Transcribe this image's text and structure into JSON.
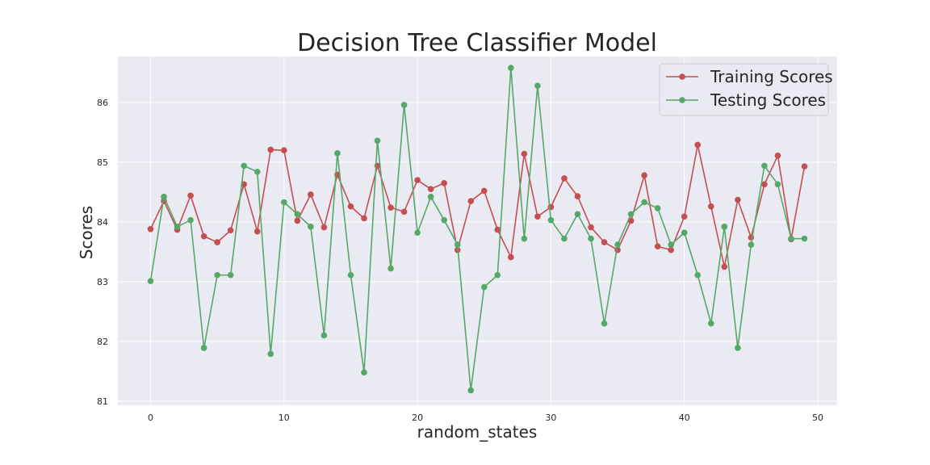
{
  "chart_data": {
    "type": "line",
    "title": "Decision Tree Classifier Model",
    "xlabel": "random_states",
    "ylabel": "Scores",
    "xlim": [
      -2.45,
      51.45
    ],
    "ylim": [
      80.93,
      86.77
    ],
    "xticks": [
      0,
      10,
      20,
      30,
      40,
      50
    ],
    "yticks": [
      81,
      82,
      83,
      84,
      85,
      86
    ],
    "grid": true,
    "legend_position": "top-right",
    "background": "#eaeaf2",
    "x": [
      0,
      1,
      2,
      3,
      4,
      5,
      6,
      7,
      8,
      9,
      10,
      11,
      12,
      13,
      14,
      15,
      16,
      17,
      18,
      19,
      20,
      21,
      22,
      23,
      24,
      25,
      26,
      27,
      28,
      29,
      30,
      31,
      32,
      33,
      34,
      35,
      36,
      37,
      38,
      39,
      40,
      41,
      42,
      43,
      44,
      45,
      46,
      47,
      48,
      49
    ],
    "series": [
      {
        "name": "Training Scores",
        "color": "#c44e52",
        "values": [
          83.88,
          84.35,
          83.87,
          84.44,
          83.76,
          83.66,
          83.86,
          84.63,
          83.84,
          85.21,
          85.2,
          84.02,
          84.46,
          83.91,
          84.79,
          84.26,
          84.06,
          84.94,
          84.24,
          84.17,
          84.7,
          84.55,
          84.65,
          83.53,
          84.35,
          84.52,
          83.87,
          83.41,
          85.14,
          84.09,
          84.25,
          84.73,
          84.43,
          83.91,
          83.66,
          83.53,
          84.02,
          84.78,
          83.59,
          83.53,
          84.09,
          85.29,
          84.26,
          83.25,
          84.37,
          83.74,
          84.63,
          85.11,
          83.71,
          84.93
        ]
      },
      {
        "name": "Testing Scores",
        "color": "#55a868",
        "values": [
          83.01,
          84.42,
          83.92,
          84.03,
          81.89,
          83.11,
          83.11,
          84.94,
          84.84,
          81.79,
          84.33,
          84.13,
          83.92,
          82.1,
          85.15,
          83.11,
          81.48,
          85.36,
          83.22,
          85.96,
          83.82,
          84.42,
          84.03,
          83.62,
          81.18,
          82.91,
          83.11,
          86.58,
          83.72,
          86.28,
          84.03,
          83.72,
          84.13,
          83.72,
          82.3,
          83.62,
          84.13,
          84.33,
          84.23,
          83.62,
          83.82,
          83.11,
          82.3,
          83.92,
          81.89,
          83.62,
          84.94,
          84.63,
          83.72,
          83.72
        ]
      }
    ]
  }
}
